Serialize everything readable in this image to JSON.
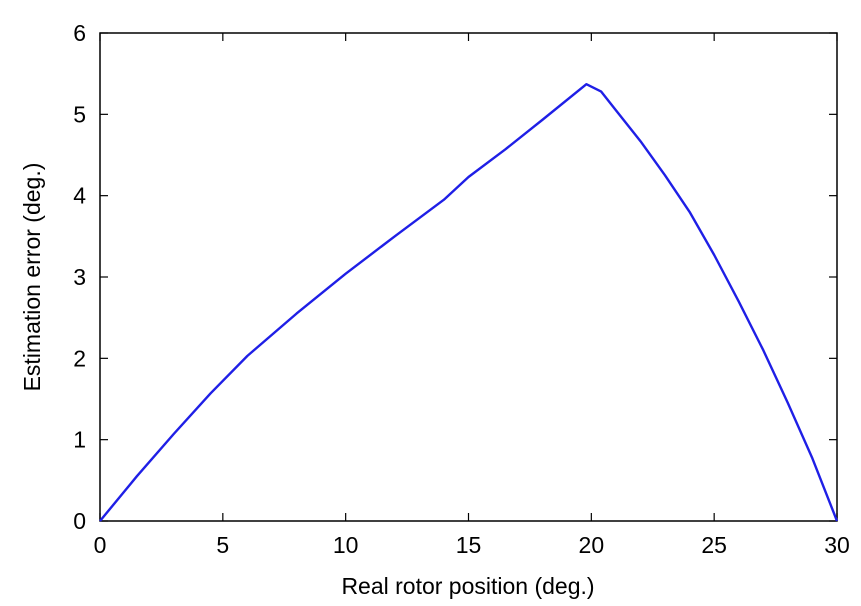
{
  "chart_data": {
    "type": "line",
    "title": "",
    "xlabel": "Real rotor position (deg.)",
    "ylabel": "Estimation error (deg.)",
    "xlim": [
      0,
      30
    ],
    "ylim": [
      0,
      6
    ],
    "x_ticks": [
      0,
      5,
      10,
      15,
      20,
      25,
      30
    ],
    "y_ticks": [
      0,
      1,
      2,
      3,
      4,
      5,
      6
    ],
    "grid": false,
    "legend": "none",
    "series": [
      {
        "color": "#1f1fe6",
        "points": [
          [
            0,
            0
          ],
          [
            1.5,
            0.55
          ],
          [
            3,
            1.07
          ],
          [
            4.5,
            1.57
          ],
          [
            6,
            2.03
          ],
          [
            8,
            2.55
          ],
          [
            10,
            3.04
          ],
          [
            12,
            3.5
          ],
          [
            14,
            3.95
          ],
          [
            15,
            4.23
          ],
          [
            16.5,
            4.57
          ],
          [
            18,
            4.93
          ],
          [
            19.8,
            5.37
          ],
          [
            20.4,
            5.28
          ],
          [
            21,
            5.05
          ],
          [
            22,
            4.67
          ],
          [
            23,
            4.25
          ],
          [
            24,
            3.8
          ],
          [
            25,
            3.27
          ],
          [
            26,
            2.7
          ],
          [
            27,
            2.1
          ],
          [
            28,
            1.45
          ],
          [
            29,
            0.77
          ],
          [
            30,
            0
          ]
        ]
      }
    ]
  }
}
